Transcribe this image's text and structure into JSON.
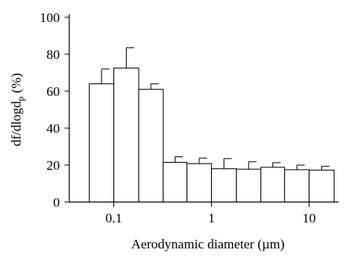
{
  "chart_data": {
    "type": "bar",
    "xlabel": "Aerodynamic diameter (µm)",
    "ylabel": "df/dlogd",
    "ylabel_subscript": "p",
    "ylabel_suffix": " (%)",
    "x_scale": "log",
    "ylim": [
      0,
      100
    ],
    "y_ticks": [
      0,
      20,
      40,
      60,
      80,
      100
    ],
    "x_ticks": [
      {
        "value": 0.1,
        "label": "0.1"
      },
      {
        "value": 1,
        "label": "1"
      },
      {
        "value": 10,
        "label": "10"
      }
    ],
    "bars": [
      {
        "x_lower": 0.056,
        "x_upper": 0.1,
        "value": 64,
        "error": 8
      },
      {
        "x_lower": 0.1,
        "x_upper": 0.18,
        "value": 72.5,
        "error": 11
      },
      {
        "x_lower": 0.18,
        "x_upper": 0.32,
        "value": 61,
        "error": 3
      },
      {
        "x_lower": 0.32,
        "x_upper": 0.56,
        "value": 21.5,
        "error": 3
      },
      {
        "x_lower": 0.56,
        "x_upper": 1.0,
        "value": 20.8,
        "error": 3
      },
      {
        "x_lower": 1.0,
        "x_upper": 1.8,
        "value": 18,
        "error": 5.5
      },
      {
        "x_lower": 1.8,
        "x_upper": 3.2,
        "value": 17.8,
        "error": 4
      },
      {
        "x_lower": 3.2,
        "x_upper": 5.6,
        "value": 18.8,
        "error": 2.5
      },
      {
        "x_lower": 5.6,
        "x_upper": 10,
        "value": 17.5,
        "error": 2.5
      },
      {
        "x_lower": 10,
        "x_upper": 18,
        "value": 17.3,
        "error": 2
      }
    ],
    "bar_fill": "#ffffff",
    "stroke_color": "#000000",
    "grid": false,
    "legend": "none"
  }
}
